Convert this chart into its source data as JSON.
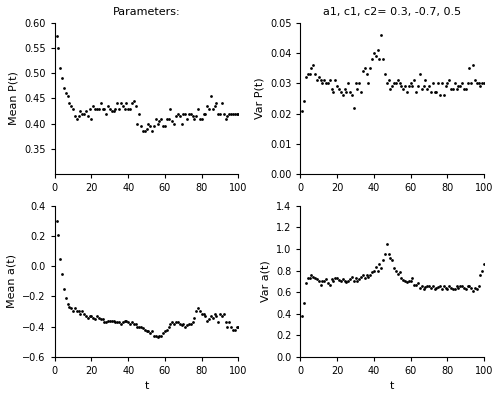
{
  "title_left": "Parameters:",
  "title_right": "a1, c1, c2= 0.3, -0.7, 0.5",
  "xlabel": "t",
  "ylabel_tl": "Mean P(t)",
  "ylabel_tr": "Var P(t)",
  "ylabel_bl": "Mean a(t)",
  "ylabel_br": "Var a(t)",
  "ylim_tl": [
    0.3,
    0.6
  ],
  "ylim_tr": [
    0.0,
    0.05
  ],
  "ylim_bl": [
    -0.6,
    0.4
  ],
  "ylim_br": [
    0.0,
    1.4
  ],
  "xlim": [
    0,
    100
  ],
  "yticks_tl": [
    0.35,
    0.4,
    0.45,
    0.5,
    0.55,
    0.6
  ],
  "yticks_tr": [
    0.0,
    0.01,
    0.02,
    0.03,
    0.04,
    0.05
  ],
  "yticks_bl": [
    -0.6,
    -0.4,
    -0.2,
    0.0,
    0.2,
    0.4
  ],
  "yticks_br": [
    0.0,
    0.2,
    0.4,
    0.6,
    0.8,
    1.0,
    1.2,
    1.4
  ],
  "xticks": [
    0,
    20,
    40,
    60,
    80,
    100
  ],
  "mean_P_x": [
    1,
    2,
    3,
    4,
    5,
    6,
    7,
    8,
    9,
    10,
    11,
    12,
    13,
    14,
    15,
    16,
    17,
    18,
    19,
    20,
    21,
    22,
    23,
    24,
    25,
    26,
    27,
    28,
    29,
    30,
    31,
    32,
    33,
    34,
    35,
    36,
    37,
    38,
    39,
    40,
    41,
    42,
    43,
    44,
    45,
    46,
    47,
    48,
    49,
    50,
    51,
    52,
    53,
    54,
    55,
    56,
    57,
    58,
    59,
    60,
    61,
    62,
    63,
    64,
    65,
    66,
    67,
    68,
    69,
    70,
    71,
    72,
    73,
    74,
    75,
    76,
    77,
    78,
    79,
    80,
    81,
    82,
    83,
    84,
    85,
    86,
    87,
    88,
    89,
    90,
    91,
    92,
    93,
    94,
    95,
    96,
    97,
    98,
    99,
    100
  ],
  "mean_P_y": [
    0.575,
    0.55,
    0.51,
    0.49,
    0.47,
    0.46,
    0.455,
    0.44,
    0.435,
    0.43,
    0.415,
    0.41,
    0.415,
    0.425,
    0.42,
    0.42,
    0.425,
    0.415,
    0.43,
    0.41,
    0.435,
    0.43,
    0.43,
    0.43,
    0.44,
    0.43,
    0.43,
    0.42,
    0.435,
    0.43,
    0.425,
    0.425,
    0.43,
    0.44,
    0.43,
    0.44,
    0.435,
    0.43,
    0.44,
    0.43,
    0.43,
    0.44,
    0.445,
    0.435,
    0.4,
    0.42,
    0.395,
    0.385,
    0.385,
    0.39,
    0.4,
    0.395,
    0.385,
    0.395,
    0.41,
    0.4,
    0.405,
    0.41,
    0.395,
    0.395,
    0.41,
    0.41,
    0.43,
    0.405,
    0.4,
    0.415,
    0.42,
    0.415,
    0.4,
    0.42,
    0.42,
    0.41,
    0.42,
    0.42,
    0.415,
    0.41,
    0.415,
    0.43,
    0.41,
    0.41,
    0.42,
    0.42,
    0.435,
    0.43,
    0.455,
    0.43,
    0.435,
    0.44,
    0.42,
    0.42,
    0.44,
    0.42,
    0.41,
    0.415,
    0.42,
    0.42,
    0.42,
    0.42,
    0.42,
    0.42
  ],
  "var_P_x": [
    1,
    2,
    3,
    4,
    5,
    6,
    7,
    8,
    9,
    10,
    11,
    12,
    13,
    14,
    15,
    16,
    17,
    18,
    19,
    20,
    21,
    22,
    23,
    24,
    25,
    26,
    27,
    28,
    29,
    30,
    31,
    32,
    33,
    34,
    35,
    36,
    37,
    38,
    39,
    40,
    41,
    42,
    43,
    44,
    45,
    46,
    47,
    48,
    49,
    50,
    51,
    52,
    53,
    54,
    55,
    56,
    57,
    58,
    59,
    60,
    61,
    62,
    63,
    64,
    65,
    66,
    67,
    68,
    69,
    70,
    71,
    72,
    73,
    74,
    75,
    76,
    77,
    78,
    79,
    80,
    81,
    82,
    83,
    84,
    85,
    86,
    87,
    88,
    89,
    90,
    91,
    92,
    93,
    94,
    95,
    96,
    97,
    98,
    99,
    100
  ],
  "var_P_y": [
    0.021,
    0.024,
    0.032,
    0.033,
    0.033,
    0.035,
    0.036,
    0.033,
    0.031,
    0.032,
    0.031,
    0.03,
    0.031,
    0.03,
    0.03,
    0.031,
    0.028,
    0.027,
    0.031,
    0.029,
    0.028,
    0.027,
    0.026,
    0.028,
    0.027,
    0.03,
    0.027,
    0.026,
    0.022,
    0.03,
    0.028,
    0.03,
    0.027,
    0.034,
    0.035,
    0.033,
    0.03,
    0.035,
    0.038,
    0.04,
    0.039,
    0.041,
    0.038,
    0.046,
    0.038,
    0.033,
    0.03,
    0.031,
    0.028,
    0.029,
    0.03,
    0.03,
    0.031,
    0.03,
    0.029,
    0.028,
    0.029,
    0.027,
    0.029,
    0.03,
    0.029,
    0.031,
    0.027,
    0.029,
    0.033,
    0.028,
    0.029,
    0.031,
    0.028,
    0.029,
    0.027,
    0.03,
    0.027,
    0.027,
    0.03,
    0.026,
    0.03,
    0.026,
    0.029,
    0.03,
    0.031,
    0.028,
    0.028,
    0.03,
    0.028,
    0.029,
    0.029,
    0.03,
    0.028,
    0.028,
    0.03,
    0.035,
    0.03,
    0.036,
    0.031,
    0.03,
    0.03,
    0.029,
    0.03,
    0.03
  ],
  "mean_a_x": [
    1,
    2,
    3,
    4,
    5,
    6,
    7,
    8,
    9,
    10,
    11,
    12,
    13,
    14,
    15,
    16,
    17,
    18,
    19,
    20,
    21,
    22,
    23,
    24,
    25,
    26,
    27,
    28,
    29,
    30,
    31,
    32,
    33,
    34,
    35,
    36,
    37,
    38,
    39,
    40,
    41,
    42,
    43,
    44,
    45,
    46,
    47,
    48,
    49,
    50,
    51,
    52,
    53,
    54,
    55,
    56,
    57,
    58,
    59,
    60,
    61,
    62,
    63,
    64,
    65,
    66,
    67,
    68,
    69,
    70,
    71,
    72,
    73,
    74,
    75,
    76,
    77,
    78,
    79,
    80,
    81,
    82,
    83,
    84,
    85,
    86,
    87,
    88,
    89,
    90,
    91,
    92,
    93,
    94,
    95,
    96,
    97,
    98,
    99,
    100
  ],
  "mean_a_y": [
    0.3,
    0.21,
    0.05,
    -0.05,
    -0.15,
    -0.21,
    -0.25,
    -0.27,
    -0.28,
    -0.3,
    -0.28,
    -0.3,
    -0.3,
    -0.32,
    -0.3,
    -0.32,
    -0.33,
    -0.34,
    -0.33,
    -0.33,
    -0.34,
    -0.35,
    -0.33,
    -0.34,
    -0.35,
    -0.35,
    -0.37,
    -0.37,
    -0.36,
    -0.36,
    -0.36,
    -0.36,
    -0.37,
    -0.37,
    -0.37,
    -0.38,
    -0.37,
    -0.36,
    -0.36,
    -0.37,
    -0.38,
    -0.37,
    -0.38,
    -0.38,
    -0.4,
    -0.4,
    -0.4,
    -0.41,
    -0.42,
    -0.43,
    -0.43,
    -0.44,
    -0.43,
    -0.46,
    -0.46,
    -0.47,
    -0.46,
    -0.46,
    -0.44,
    -0.43,
    -0.42,
    -0.4,
    -0.38,
    -0.37,
    -0.38,
    -0.37,
    -0.37,
    -0.38,
    -0.39,
    -0.38,
    -0.4,
    -0.39,
    -0.38,
    -0.38,
    -0.37,
    -0.34,
    -0.3,
    -0.28,
    -0.3,
    -0.32,
    -0.32,
    -0.33,
    -0.36,
    -0.35,
    -0.33,
    -0.34,
    -0.32,
    -0.33,
    -0.37,
    -0.32,
    -0.33,
    -0.32,
    -0.37,
    -0.4,
    -0.37,
    -0.4,
    -0.42,
    -0.42,
    -0.4,
    -0.4
  ],
  "var_a_x": [
    1,
    2,
    3,
    4,
    5,
    6,
    7,
    8,
    9,
    10,
    11,
    12,
    13,
    14,
    15,
    16,
    17,
    18,
    19,
    20,
    21,
    22,
    23,
    24,
    25,
    26,
    27,
    28,
    29,
    30,
    31,
    32,
    33,
    34,
    35,
    36,
    37,
    38,
    39,
    40,
    41,
    42,
    43,
    44,
    45,
    46,
    47,
    48,
    49,
    50,
    51,
    52,
    53,
    54,
    55,
    56,
    57,
    58,
    59,
    60,
    61,
    62,
    63,
    64,
    65,
    66,
    67,
    68,
    69,
    70,
    71,
    72,
    73,
    74,
    75,
    76,
    77,
    78,
    79,
    80,
    81,
    82,
    83,
    84,
    85,
    86,
    87,
    88,
    89,
    90,
    91,
    92,
    93,
    94,
    95,
    96,
    97,
    98,
    99,
    100
  ],
  "var_a_y": [
    0.38,
    0.5,
    0.68,
    0.73,
    0.73,
    0.76,
    0.74,
    0.73,
    0.72,
    0.7,
    0.67,
    0.7,
    0.7,
    0.72,
    0.68,
    0.67,
    0.72,
    0.7,
    0.73,
    0.73,
    0.71,
    0.7,
    0.72,
    0.7,
    0.69,
    0.7,
    0.72,
    0.74,
    0.7,
    0.73,
    0.7,
    0.72,
    0.74,
    0.76,
    0.73,
    0.76,
    0.74,
    0.76,
    0.79,
    0.8,
    0.83,
    0.8,
    0.86,
    0.82,
    0.9,
    0.95,
    1.05,
    0.95,
    0.92,
    0.9,
    0.82,
    0.8,
    0.77,
    0.79,
    0.73,
    0.71,
    0.7,
    0.69,
    0.7,
    0.7,
    0.73,
    0.67,
    0.67,
    0.68,
    0.64,
    0.66,
    0.63,
    0.65,
    0.66,
    0.66,
    0.64,
    0.66,
    0.63,
    0.64,
    0.65,
    0.66,
    0.63,
    0.66,
    0.64,
    0.63,
    0.66,
    0.64,
    0.63,
    0.63,
    0.66,
    0.64,
    0.66,
    0.66,
    0.64,
    0.63,
    0.66,
    0.66,
    0.64,
    0.61,
    0.64,
    0.63,
    0.66,
    0.76,
    0.8,
    0.86
  ],
  "marker": ".",
  "markersize": 4,
  "color": "black"
}
